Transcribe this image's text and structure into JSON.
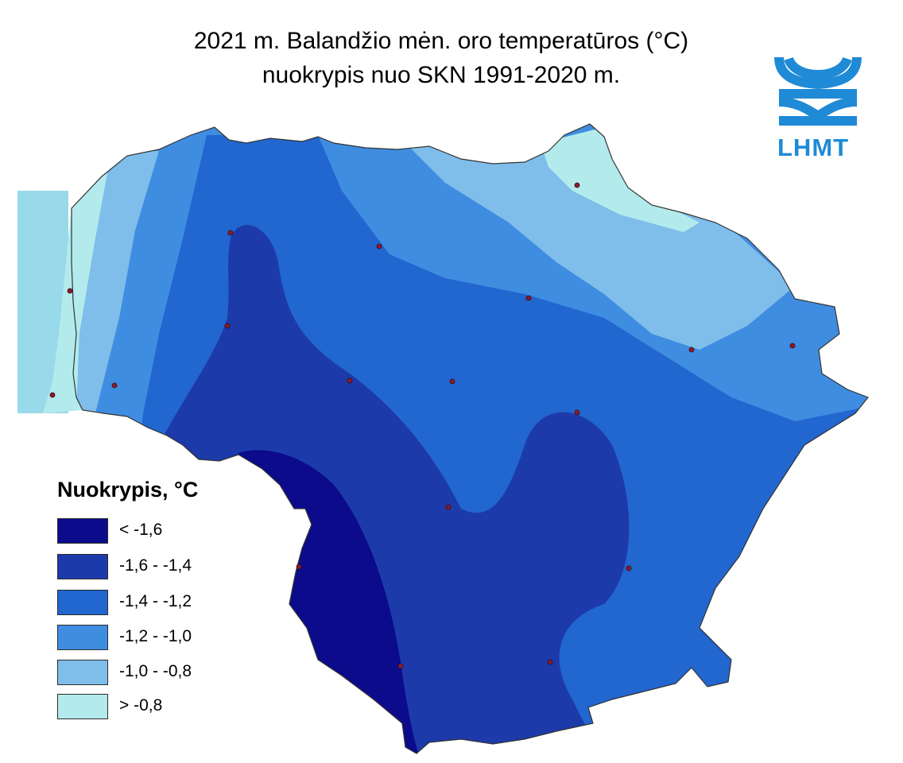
{
  "title": {
    "line1": "2021 m. Balandžio mėn. oro temperatūros (°C)",
    "line2": "nuokrypis nuo SKN 1991-2020 m."
  },
  "logo": {
    "text": "LHMT",
    "color": "#1f8ad6"
  },
  "legend": {
    "title": "Nuokrypis, °C",
    "items": [
      {
        "label": "< -1,6",
        "color": "#0b0b8c"
      },
      {
        "label": "-1,6 - -1,4",
        "color": "#1d3aab"
      },
      {
        "label": "-1,4 - -1,2",
        "color": "#2266cf"
      },
      {
        "label": "-1,2 - -1,0",
        "color": "#3f8de1"
      },
      {
        "label": "-1,0 - -0,8",
        "color": "#7fbdea"
      },
      {
        "label": "> -0,8",
        "color": "#b3ebec"
      }
    ]
  },
  "colors": {
    "sea": "#98d9ea",
    "station": "#8a1b2b",
    "border": "#333333"
  }
}
